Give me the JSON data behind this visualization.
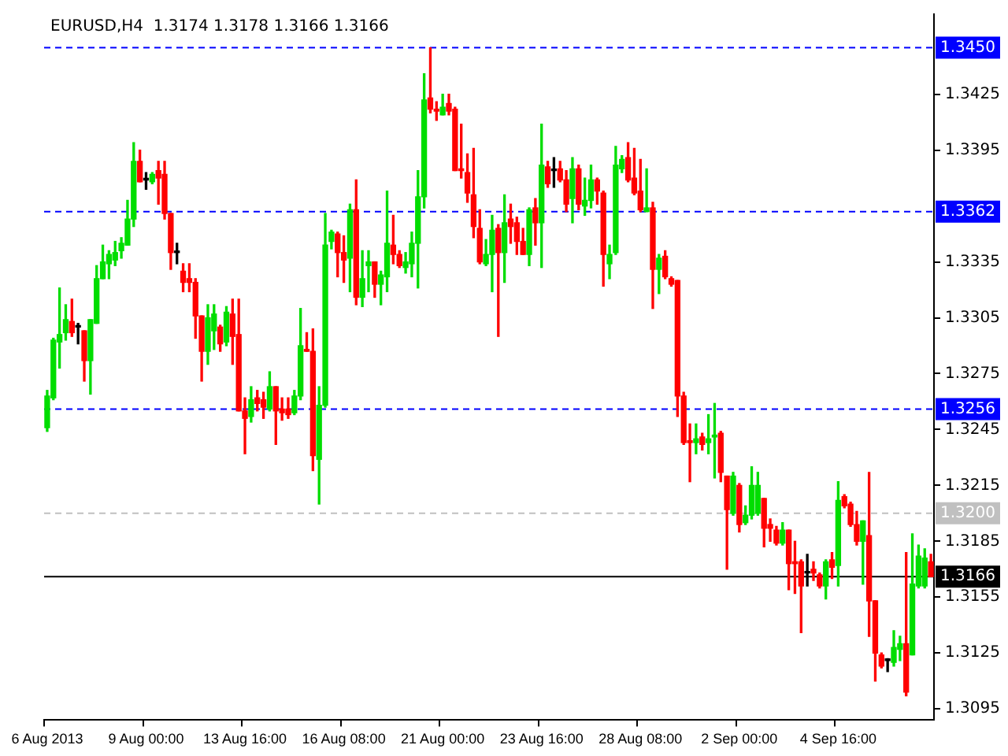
{
  "chart_data": {
    "type": "candlestick",
    "title": "EURUSD,H4  1.3174 1.3178 1.3166 1.3166",
    "categories": [
      "6 Aug 2013",
      null,
      null,
      null,
      null,
      null,
      null,
      null,
      null,
      null,
      null,
      null,
      null,
      null,
      null,
      null,
      "9 Aug 00:00",
      null,
      null,
      null,
      null,
      null,
      null,
      null,
      null,
      null,
      null,
      null,
      null,
      null,
      null,
      null,
      "13 Aug 16:00",
      null,
      null,
      null,
      null,
      null,
      null,
      null,
      null,
      null,
      null,
      null,
      null,
      null,
      null,
      null,
      "16 Aug 08:00",
      null,
      null,
      null,
      null,
      null,
      null,
      null,
      null,
      null,
      null,
      null,
      null,
      null,
      null,
      null,
      "21 Aug 00:00",
      null,
      null,
      null,
      null,
      null,
      null,
      null,
      null,
      null,
      null,
      null,
      null,
      null,
      null,
      null,
      "23 Aug 16:00",
      null,
      null,
      null,
      null,
      null,
      null,
      null,
      null,
      null,
      null,
      null,
      null,
      null,
      null,
      null,
      "28 Aug 08:00",
      null,
      null,
      null,
      null,
      null,
      null,
      null,
      null,
      null,
      null,
      null,
      null,
      null,
      null,
      null,
      "2 Sep 00:00",
      null,
      null,
      null,
      null,
      null,
      null,
      null,
      null,
      null,
      null,
      null,
      null,
      null,
      null,
      null,
      "4 Sep 16:00",
      null,
      null,
      null,
      null,
      null,
      null,
      null,
      null,
      null,
      null,
      null,
      null,
      null,
      null,
      null
    ],
    "ohlc": [
      [
        1.3246,
        1.3266,
        1.3244,
        1.3263
      ],
      [
        1.3262,
        1.3294,
        1.3261,
        1.3293
      ],
      [
        1.3292,
        1.3321,
        1.3278,
        1.3296
      ],
      [
        1.3297,
        1.3312,
        1.3293,
        1.3304
      ],
      [
        1.3303,
        1.3315,
        1.3295,
        1.3297
      ],
      [
        1.33,
        1.3302,
        1.3291,
        1.33
      ],
      [
        1.3298,
        1.3298,
        1.3271,
        1.3282
      ],
      [
        1.3282,
        1.3304,
        1.3264,
        1.3304
      ],
      [
        1.3302,
        1.3333,
        1.3302,
        1.3326
      ],
      [
        1.3326,
        1.3344,
        1.3326,
        1.3335
      ],
      [
        1.3334,
        1.3341,
        1.3326,
        1.3339
      ],
      [
        1.3336,
        1.3346,
        1.3333,
        1.334
      ],
      [
        1.3341,
        1.3348,
        1.3337,
        1.3345
      ],
      [
        1.3344,
        1.3368,
        1.3344,
        1.3358
      ],
      [
        1.3358,
        1.3399,
        1.3354,
        1.3389
      ],
      [
        1.3389,
        1.3395,
        1.3378,
        1.3378
      ],
      [
        1.3379,
        1.3383,
        1.3374,
        1.3379
      ],
      [
        1.3378,
        1.3383,
        1.3377,
        1.3382
      ],
      [
        1.3384,
        1.3389,
        1.3366,
        1.338
      ],
      [
        1.3382,
        1.3389,
        1.3358,
        1.3361
      ],
      [
        1.3361,
        1.3361,
        1.3331,
        1.334
      ],
      [
        1.334,
        1.3345,
        1.3334,
        1.334
      ],
      [
        1.333,
        1.3334,
        1.3319,
        1.3324
      ],
      [
        1.3326,
        1.3334,
        1.3319,
        1.3324
      ],
      [
        1.3324,
        1.3326,
        1.3294,
        1.3306
      ],
      [
        1.3306,
        1.3306,
        1.3271,
        1.3287
      ],
      [
        1.3287,
        1.3312,
        1.328,
        1.3305
      ],
      [
        1.3298,
        1.3312,
        1.3288,
        1.3307
      ],
      [
        1.33,
        1.3301,
        1.3287,
        1.3291
      ],
      [
        1.3292,
        1.3311,
        1.329,
        1.3308
      ],
      [
        1.3307,
        1.3315,
        1.328,
        1.3295
      ],
      [
        1.3296,
        1.3315,
        1.3255,
        1.3255
      ],
      [
        1.3255,
        1.3262,
        1.3232,
        1.3251
      ],
      [
        1.3252,
        1.3268,
        1.3249,
        1.3261
      ],
      [
        1.3262,
        1.3266,
        1.3255,
        1.3259
      ],
      [
        1.3261,
        1.3265,
        1.3251,
        1.3257
      ],
      [
        1.3256,
        1.3276,
        1.3255,
        1.3268
      ],
      [
        1.3268,
        1.3268,
        1.3237,
        1.3255
      ],
      [
        1.3256,
        1.3262,
        1.325,
        1.3254
      ],
      [
        1.3256,
        1.3262,
        1.3251,
        1.3253
      ],
      [
        1.3254,
        1.3266,
        1.3253,
        1.3263
      ],
      [
        1.3263,
        1.331,
        1.3261,
        1.329
      ],
      [
        1.3288,
        1.3297,
        1.3287,
        1.3287
      ],
      [
        1.3287,
        1.3299,
        1.3223,
        1.3231
      ],
      [
        1.3229,
        1.3268,
        1.3205,
        1.3258
      ],
      [
        1.3258,
        1.3361,
        1.3257,
        1.3344
      ],
      [
        1.3346,
        1.3352,
        1.3342,
        1.3351
      ],
      [
        1.335,
        1.3351,
        1.3327,
        1.334
      ],
      [
        1.334,
        1.3349,
        1.3324,
        1.3336
      ],
      [
        1.3337,
        1.3366,
        1.3319,
        1.3363
      ],
      [
        1.3363,
        1.3379,
        1.3312,
        1.3316
      ],
      [
        1.3316,
        1.3341,
        1.3311,
        1.3326
      ],
      [
        1.3333,
        1.3341,
        1.3319,
        1.3335
      ],
      [
        1.3335,
        1.3335,
        1.3316,
        1.3323
      ],
      [
        1.3323,
        1.333,
        1.3312,
        1.3328
      ],
      [
        1.3327,
        1.3373,
        1.3319,
        1.3345
      ],
      [
        1.3344,
        1.336,
        1.3334,
        1.3339
      ],
      [
        1.3339,
        1.3341,
        1.3332,
        1.3333
      ],
      [
        1.3332,
        1.334,
        1.3329,
        1.3335
      ],
      [
        1.3334,
        1.3351,
        1.3327,
        1.3345
      ],
      [
        1.3345,
        1.3384,
        1.3321,
        1.337
      ],
      [
        1.337,
        1.3436,
        1.3364,
        1.3422
      ],
      [
        1.3423,
        1.345,
        1.3415,
        1.3417
      ],
      [
        1.3417,
        1.3421,
        1.3411,
        1.3416
      ],
      [
        1.3414,
        1.3425,
        1.3414,
        1.3418
      ],
      [
        1.342,
        1.3425,
        1.3414,
        1.3416
      ],
      [
        1.3417,
        1.3418,
        1.3384,
        1.3384
      ],
      [
        1.3385,
        1.3409,
        1.338,
        1.3384
      ],
      [
        1.3383,
        1.3393,
        1.3367,
        1.3372
      ],
      [
        1.3371,
        1.3396,
        1.3348,
        1.3354
      ],
      [
        1.3353,
        1.3363,
        1.3334,
        1.3335
      ],
      [
        1.3334,
        1.3347,
        1.3333,
        1.3339
      ],
      [
        1.3339,
        1.336,
        1.3319,
        1.3352
      ],
      [
        1.3353,
        1.3355,
        1.3295,
        1.334
      ],
      [
        1.334,
        1.3371,
        1.3324,
        1.3356
      ],
      [
        1.3358,
        1.3366,
        1.3345,
        1.3354
      ],
      [
        1.3356,
        1.3359,
        1.3339,
        1.3346
      ],
      [
        1.3346,
        1.3353,
        1.3339,
        1.3339
      ],
      [
        1.3339,
        1.3364,
        1.3333,
        1.3363
      ],
      [
        1.3364,
        1.3369,
        1.3344,
        1.3356
      ],
      [
        1.3356,
        1.3409,
        1.3332,
        1.3387
      ],
      [
        1.3386,
        1.3389,
        1.3375,
        1.3377
      ],
      [
        1.3384,
        1.3391,
        1.3375,
        1.3384
      ],
      [
        1.3385,
        1.3389,
        1.3378,
        1.3379
      ],
      [
        1.3379,
        1.3384,
        1.3362,
        1.3366
      ],
      [
        1.3369,
        1.3391,
        1.3356,
        1.3385
      ],
      [
        1.3385,
        1.3387,
        1.3363,
        1.3366
      ],
      [
        1.3365,
        1.338,
        1.336,
        1.3368
      ],
      [
        1.3368,
        1.3387,
        1.3364,
        1.3379
      ],
      [
        1.3379,
        1.338,
        1.3366,
        1.3373
      ],
      [
        1.3372,
        1.3373,
        1.3322,
        1.3339
      ],
      [
        1.3334,
        1.3344,
        1.3326,
        1.3339
      ],
      [
        1.334,
        1.3397,
        1.3339,
        1.3387
      ],
      [
        1.3385,
        1.3392,
        1.3383,
        1.339
      ],
      [
        1.3391,
        1.3399,
        1.3378,
        1.3379
      ],
      [
        1.338,
        1.3396,
        1.3371,
        1.3372
      ],
      [
        1.3373,
        1.339,
        1.3362,
        1.3363
      ],
      [
        1.3362,
        1.3385,
        1.3362,
        1.3364
      ],
      [
        1.3364,
        1.3367,
        1.331,
        1.3331
      ],
      [
        1.3331,
        1.3339,
        1.3318,
        1.3337
      ],
      [
        1.3338,
        1.3341,
        1.3326,
        1.3327
      ],
      [
        1.3326,
        1.3327,
        1.3322,
        1.3323
      ],
      [
        1.3325,
        1.3325,
        1.3252,
        1.3263
      ],
      [
        1.3263,
        1.3265,
        1.3237,
        1.3238
      ],
      [
        1.3239,
        1.3248,
        1.3217,
        1.3238
      ],
      [
        1.3238,
        1.3248,
        1.3232,
        1.324
      ],
      [
        1.3241,
        1.3243,
        1.3234,
        1.3237
      ],
      [
        1.3238,
        1.3253,
        1.3232,
        1.324
      ],
      [
        1.3241,
        1.3259,
        1.3219,
        1.3242
      ],
      [
        1.3243,
        1.3244,
        1.3217,
        1.3222
      ],
      [
        1.322,
        1.322,
        1.317,
        1.3202
      ],
      [
        1.32,
        1.3222,
        1.3199,
        1.322
      ],
      [
        1.3215,
        1.3216,
        1.319,
        1.3194
      ],
      [
        1.3195,
        1.3204,
        1.3194,
        1.3199
      ],
      [
        1.3199,
        1.3225,
        1.3197,
        1.3215
      ],
      [
        1.32,
        1.3222,
        1.3199,
        1.3215
      ],
      [
        1.3208,
        1.3208,
        1.3182,
        1.3192
      ],
      [
        1.3194,
        1.3197,
        1.3185,
        1.3192
      ],
      [
        1.3191,
        1.3193,
        1.3183,
        1.3184
      ],
      [
        1.3184,
        1.3195,
        1.3183,
        1.3191
      ],
      [
        1.3191,
        1.3191,
        1.3159,
        1.3173
      ],
      [
        1.3174,
        1.3185,
        1.3157,
        1.3173
      ],
      [
        1.3174,
        1.3175,
        1.3136,
        1.3161
      ],
      [
        1.3168,
        1.3178,
        1.3161,
        1.3168
      ],
      [
        1.317,
        1.3174,
        1.3164,
        1.3168
      ],
      [
        1.3167,
        1.3168,
        1.316,
        1.3161
      ],
      [
        1.3161,
        1.3175,
        1.3154,
        1.3174
      ],
      [
        1.3175,
        1.3179,
        1.3165,
        1.3171
      ],
      [
        1.3172,
        1.3217,
        1.3161,
        1.3207
      ],
      [
        1.3209,
        1.321,
        1.3203,
        1.3204
      ],
      [
        1.3205,
        1.3206,
        1.3193,
        1.3194
      ],
      [
        1.3194,
        1.3201,
        1.3183,
        1.3185
      ],
      [
        1.3185,
        1.3196,
        1.3162,
        1.3196
      ],
      [
        1.3188,
        1.3222,
        1.3134,
        1.3153
      ],
      [
        1.3153,
        1.3153,
        1.311,
        1.3125
      ],
      [
        1.3124,
        1.3125,
        1.3117,
        1.3118
      ],
      [
        1.3121,
        1.3122,
        1.3115,
        1.3121
      ],
      [
        1.312,
        1.3137,
        1.3118,
        1.3128
      ],
      [
        1.3127,
        1.3134,
        1.3121,
        1.313
      ],
      [
        1.313,
        1.3179,
        1.3102,
        1.3104
      ],
      [
        1.3124,
        1.3189,
        1.3124,
        1.3162
      ],
      [
        1.3161,
        1.3183,
        1.316,
        1.3177
      ],
      [
        1.3161,
        1.3181,
        1.316,
        1.3176
      ],
      [
        1.3174,
        1.3178,
        1.3166,
        1.3166
      ]
    ],
    "ylim": [
      1.3089,
      1.3468
    ],
    "yticks": [
      1.3095,
      1.3125,
      1.3155,
      1.3185,
      1.3215,
      1.3245,
      1.3275,
      1.3305,
      1.3335,
      1.3395,
      1.3425
    ],
    "ref_lines": [
      {
        "axis": "y",
        "value": 1.345,
        "label": "1.3450",
        "color": "#0000ff",
        "line_style": "dashed"
      },
      {
        "axis": "y",
        "value": 1.3362,
        "label": "1.3362",
        "color": "#0000ff",
        "line_style": "dashed"
      },
      {
        "axis": "y",
        "value": 1.3256,
        "label": "1.3256",
        "color": "#0000ff",
        "line_style": "dashed"
      },
      {
        "axis": "y",
        "value": 1.32,
        "label": "1.3200",
        "color": "#c0c0c0",
        "line_style": "dashed"
      },
      {
        "axis": "y",
        "value": 1.3166,
        "label": "1.3166",
        "color": "#000000",
        "line_style": "solid"
      }
    ],
    "grid": false,
    "legend": false
  }
}
